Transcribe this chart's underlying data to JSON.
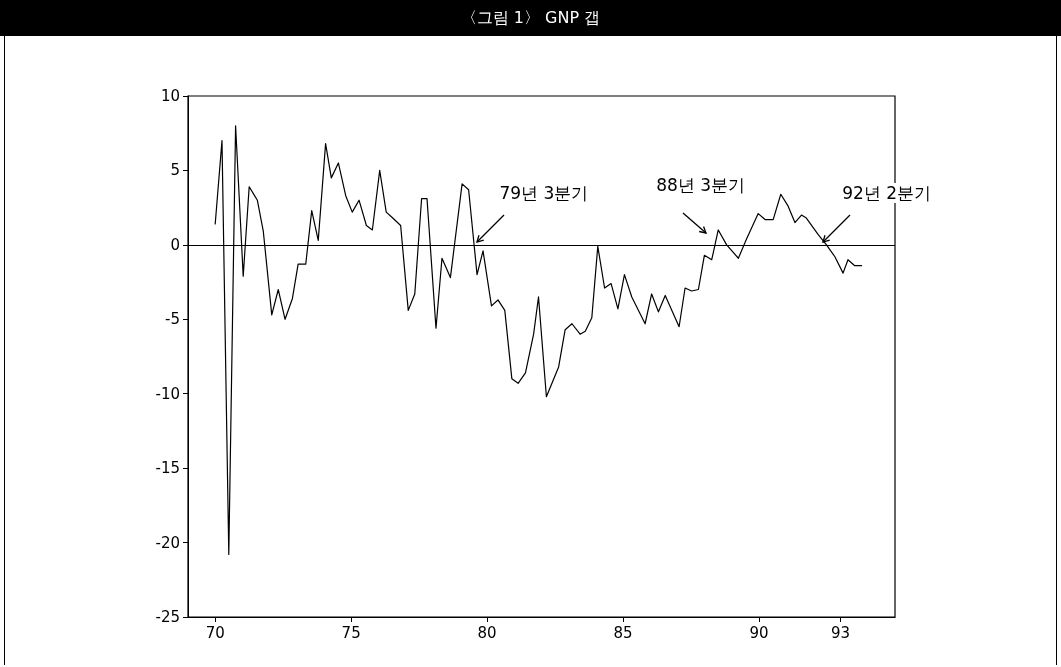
{
  "chart_data": {
    "type": "line",
    "title": "〈그림 1〉 GNP 갭",
    "color": "#000000",
    "x": [
      70.0,
      70.25,
      70.5,
      70.75,
      71.03,
      71.25,
      71.55,
      71.77,
      72.08,
      72.32,
      72.57,
      72.84,
      73.05,
      73.33,
      73.55,
      73.79,
      74.06,
      74.27,
      74.53,
      74.8,
      75.04,
      75.29,
      75.56,
      75.78,
      76.05,
      76.29,
      76.53,
      76.82,
      77.1,
      77.34,
      77.59,
      77.79,
      78.12,
      78.34,
      78.65,
      79.08,
      79.32,
      79.63,
      79.85,
      80.16,
      80.4,
      80.65,
      80.91,
      81.14,
      81.41,
      81.71,
      81.89,
      82.18,
      82.63,
      82.87,
      83.12,
      83.42,
      83.61,
      83.85,
      84.07,
      84.32,
      84.56,
      84.81,
      85.05,
      85.32,
      85.81,
      86.05,
      86.3,
      86.55,
      87.06,
      87.28,
      87.52,
      87.77,
      87.99,
      88.26,
      88.5,
      88.81,
      89.24,
      89.54,
      89.97,
      90.22,
      90.52,
      90.8,
      91.07,
      91.32,
      91.56,
      91.74,
      92.17,
      92.48,
      92.79,
      93.09,
      93.27,
      93.52,
      93.77
    ],
    "values": [
      1.4,
      7.0,
      -20.8,
      8.0,
      -2.1,
      3.9,
      3.0,
      0.9,
      -4.7,
      -3.0,
      -5.0,
      -3.6,
      -1.3,
      -1.3,
      2.3,
      0.3,
      6.8,
      4.5,
      5.5,
      3.3,
      2.2,
      3.0,
      1.3,
      1.0,
      5.0,
      2.2,
      1.8,
      1.3,
      -4.4,
      -3.3,
      3.1,
      3.1,
      -5.6,
      -0.9,
      -2.2,
      4.1,
      3.7,
      -2.0,
      -0.4,
      -4.1,
      -3.7,
      -4.4,
      -9.0,
      -9.3,
      -8.6,
      -6.0,
      -3.5,
      -10.2,
      -8.2,
      -5.7,
      -5.3,
      -6.0,
      -5.8,
      -4.9,
      -0.1,
      -2.9,
      -2.6,
      -4.3,
      -2.0,
      -3.5,
      -5.3,
      -3.3,
      -4.5,
      -3.4,
      -5.5,
      -2.9,
      -3.1,
      -3.0,
      -0.7,
      -1.0,
      1.0,
      0.0,
      -0.9,
      0.4,
      2.1,
      1.7,
      1.7,
      3.4,
      2.6,
      1.5,
      2.0,
      1.8,
      0.7,
      0.0,
      -0.8,
      -1.9,
      -1.0,
      -1.4,
      -1.4
    ],
    "xlim": [
      69,
      95
    ],
    "xticks": [
      70,
      75,
      80,
      85,
      90,
      93
    ],
    "ylim": [
      -25,
      10
    ],
    "yticks": [
      -25,
      -20,
      -15,
      -10,
      -5,
      0,
      5,
      10
    ],
    "ref_lines": [
      {
        "axis": "y",
        "value": 0
      }
    ],
    "annotations": [
      {
        "text": "79년 3분기",
        "x": 79.5,
        "y": 0
      },
      {
        "text": "88년 3분기",
        "x": 88.5,
        "y": 0
      },
      {
        "text": "92년 2분기",
        "x": 92.25,
        "y": 0
      }
    ]
  }
}
